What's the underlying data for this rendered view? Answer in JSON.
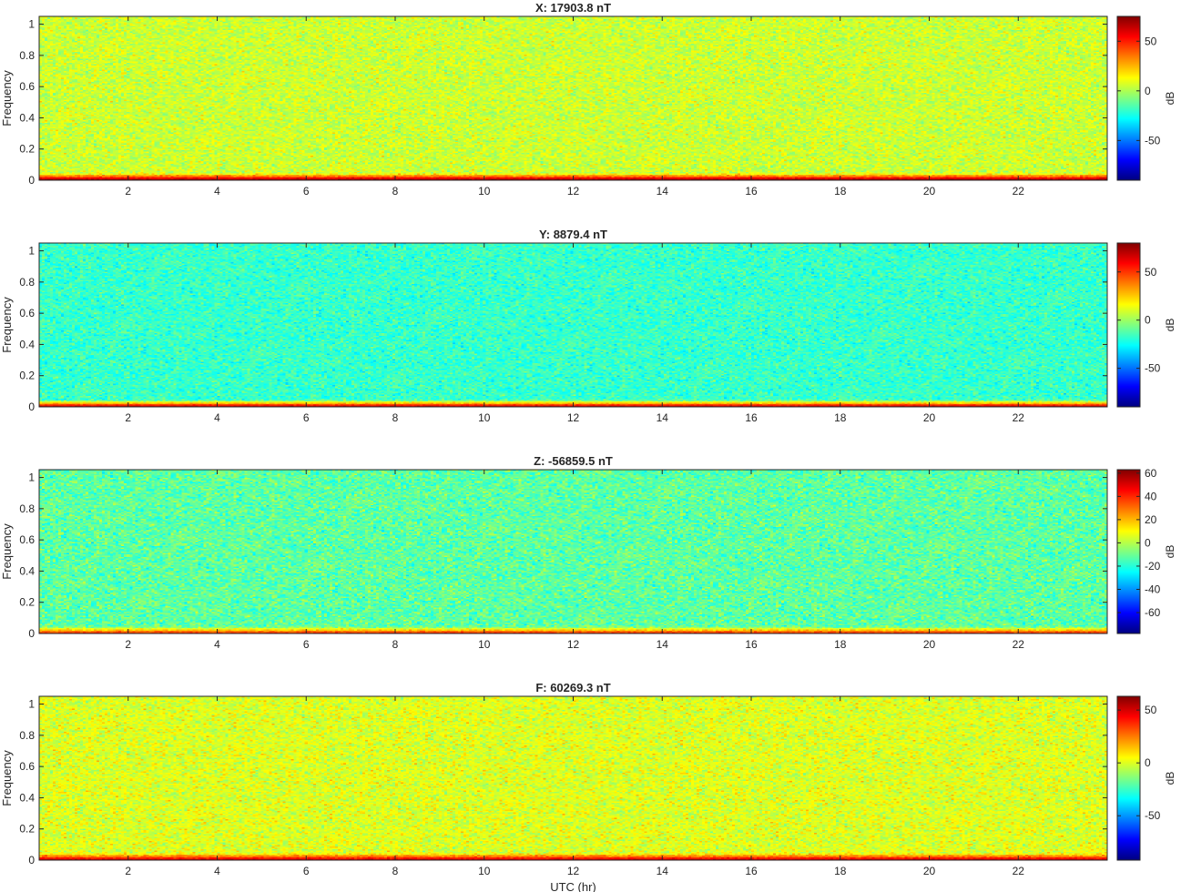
{
  "chart_data": [
    {
      "type": "heatmap",
      "title": "X: 17903.8 nT",
      "xlabel": "",
      "ylabel": "Frequency",
      "xlim": [
        0,
        24
      ],
      "ylim": [
        0,
        1.05
      ],
      "xticks": [
        2,
        4,
        6,
        8,
        10,
        12,
        14,
        16,
        18,
        20,
        22
      ],
      "yticks": [
        0,
        0.2,
        0.4,
        0.6,
        0.8,
        1
      ],
      "colorbar": {
        "label": "dB",
        "clim": [
          -90,
          75
        ],
        "ticks": [
          -50,
          0,
          50
        ]
      },
      "background_level_db": 5,
      "low_frequency_band_db": 65
    },
    {
      "type": "heatmap",
      "title": "Y: 8879.4 nT",
      "xlabel": "",
      "ylabel": "Frequency",
      "xlim": [
        0,
        24
      ],
      "ylim": [
        0,
        1.05
      ],
      "xticks": [
        2,
        4,
        6,
        8,
        10,
        12,
        14,
        16,
        18,
        20,
        22
      ],
      "yticks": [
        0,
        0.2,
        0.4,
        0.6,
        0.8,
        1
      ],
      "colorbar": {
        "label": "dB",
        "clim": [
          -90,
          80
        ],
        "ticks": [
          -50,
          0,
          50
        ]
      },
      "background_level_db": -17,
      "low_frequency_band_db": 65
    },
    {
      "type": "heatmap",
      "title": "Z: -56859.5 nT",
      "xlabel": "",
      "ylabel": "Frequency",
      "xlim": [
        0,
        24
      ],
      "ylim": [
        0,
        1.05
      ],
      "xticks": [
        2,
        4,
        6,
        8,
        10,
        12,
        14,
        16,
        18,
        20,
        22
      ],
      "yticks": [
        0,
        0.2,
        0.4,
        0.6,
        0.8,
        1
      ],
      "colorbar": {
        "label": "dB",
        "clim": [
          -78,
          63
        ],
        "ticks": [
          -60,
          -40,
          -20,
          0,
          20,
          40,
          60
        ]
      },
      "background_level_db": -12,
      "low_frequency_band_db": 35
    },
    {
      "type": "heatmap",
      "title": "F: 60269.3 nT",
      "xlabel": "UTC (hr)",
      "ylabel": "Frequency",
      "xlim": [
        0,
        24
      ],
      "ylim": [
        0,
        1.05
      ],
      "xticks": [
        2,
        4,
        6,
        8,
        10,
        12,
        14,
        16,
        18,
        20,
        22
      ],
      "yticks": [
        0,
        0.2,
        0.4,
        0.6,
        0.8,
        1
      ],
      "colorbar": {
        "label": "dB",
        "clim": [
          -92,
          63
        ],
        "ticks": [
          -50,
          0,
          50
        ]
      },
      "background_level_db": 0,
      "low_frequency_band_db": 45
    }
  ]
}
